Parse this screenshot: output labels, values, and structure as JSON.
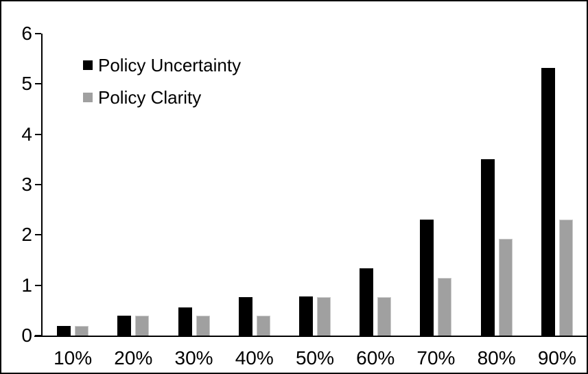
{
  "chart_data": {
    "type": "bar",
    "title": "",
    "xlabel": "",
    "ylabel": "",
    "categories": [
      "10%",
      "20%",
      "30%",
      "40%",
      "50%",
      "60%",
      "70%",
      "80%",
      "90%"
    ],
    "series": [
      {
        "name": "Policy Uncertainty",
        "color": "#000000",
        "values": [
          0.19,
          0.39,
          0.56,
          0.76,
          0.78,
          1.34,
          2.31,
          3.5,
          5.32
        ]
      },
      {
        "name": "Policy Clarity",
        "color": "#a0a0a0",
        "values": [
          0.19,
          0.39,
          0.39,
          0.39,
          0.77,
          0.77,
          1.15,
          1.92,
          2.31
        ]
      }
    ],
    "ylim": [
      0,
      6
    ],
    "y_ticks": [
      "6",
      "5",
      "4",
      "3",
      "2",
      "1",
      "0"
    ],
    "grid": false,
    "legend_position": "top-left",
    "frame_color": "#000000",
    "background_color": "#ffffff"
  }
}
